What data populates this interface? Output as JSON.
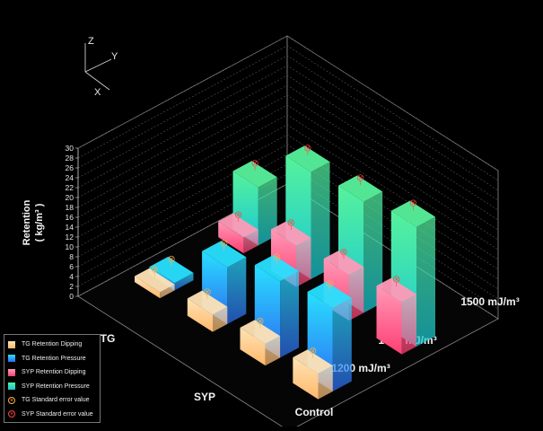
{
  "chart_data": {
    "type": "bar",
    "title": "",
    "zlabel_line1": "Retention",
    "zlabel_line2": "( kg/m³ )",
    "axis_triad": {
      "z": "Z",
      "y": "Y",
      "x": "X"
    },
    "ylim": [
      0,
      30
    ],
    "yticks": [
      0,
      2,
      4,
      6,
      8,
      10,
      12,
      14,
      16,
      18,
      20,
      22,
      24,
      26,
      28,
      30
    ],
    "wood_species": [
      "TG",
      "SYP"
    ],
    "treatments": [
      "Control",
      "1200  mJ/m³",
      "1350  mJ/m³",
      "1500  mJ/m³"
    ],
    "series": [
      {
        "name": "TG Retention Dipping",
        "species": "TG",
        "values": [
          1.2,
          3.5,
          4.4,
          5.2
        ],
        "color_top": "#ffe3b5",
        "color_bottom": "#ffb86b"
      },
      {
        "name": "TG Retention Pressure",
        "species": "TG",
        "values": [
          1.5,
          11.5,
          15.5,
          16.9
        ],
        "color_top": "#28e0ff",
        "color_bottom": "#2e6bf2"
      },
      {
        "name": "SYP Retention Dipping",
        "species": "SYP",
        "values": [
          3.2,
          8.4,
          9.3,
          10.6
        ],
        "color_top": "#ff9ab8",
        "color_bottom": "#ff3f73"
      },
      {
        "name": "SYP Retention Pressure",
        "species": "SYP",
        "values": [
          11.8,
          21.7,
          22.5,
          24.2
        ],
        "color_top": "#56f29c",
        "color_bottom": "#18c7d4"
      }
    ],
    "legend_position": "bottom-left",
    "error_legend": [
      {
        "name": "TG Standard error value",
        "color": "#ffb04a"
      },
      {
        "name": "SYP Standard error value",
        "color": "#ff4444"
      }
    ]
  }
}
